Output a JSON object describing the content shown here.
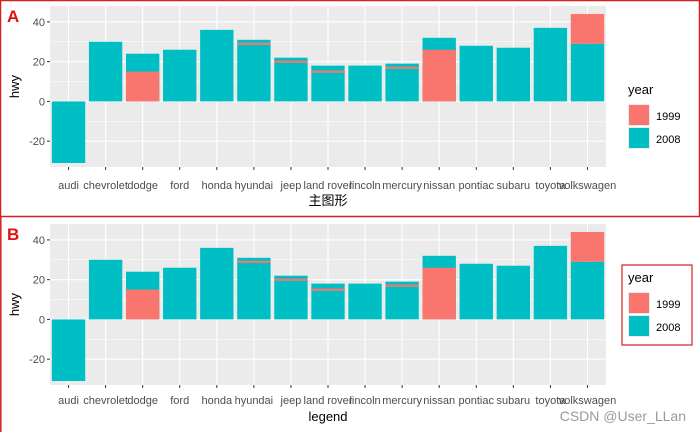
{
  "colors": {
    "y1999": "#F8766D",
    "y2008": "#00BFC4",
    "panel_bg": "#EBEBEB",
    "grid": "#FFFFFF",
    "panel_label": "#E01010",
    "border_red": "#D42020"
  },
  "watermark": "CSDN @User_LLan",
  "chart_data": [
    {
      "type": "bar",
      "panel_label": "A",
      "xlabel": "主图形",
      "ylabel": "hwy",
      "ylim": [
        -33,
        48
      ],
      "yticks": [
        -20,
        0,
        20,
        40
      ],
      "categories": [
        "audi",
        "chevrolet",
        "dodge",
        "ford",
        "honda",
        "hyundai",
        "jeep",
        "land rover",
        "lincoln",
        "mercury",
        "nissan",
        "pontiac",
        "subaru",
        "toyota",
        "volkswagen"
      ],
      "series": [
        {
          "name": "2008",
          "values": [
            -31,
            30,
            24,
            26,
            36,
            31,
            22,
            18,
            18,
            19,
            32,
            28,
            27,
            37,
            29
          ]
        },
        {
          "name": "1999",
          "values": [
            0,
            0,
            15,
            0,
            0,
            29,
            20,
            15,
            0,
            17,
            26,
            0,
            0,
            0,
            44
          ]
        }
      ],
      "legend": {
        "title": "year",
        "entries": [
          "1999",
          "2008"
        ],
        "position": "right"
      }
    },
    {
      "type": "bar",
      "panel_label": "B",
      "xlabel": "legend",
      "ylabel": "hwy",
      "ylim": [
        -33,
        48
      ],
      "yticks": [
        -20,
        0,
        20,
        40
      ],
      "categories": [
        "audi",
        "chevrolet",
        "dodge",
        "ford",
        "honda",
        "hyundai",
        "jeep",
        "land rover",
        "lincoln",
        "mercury",
        "nissan",
        "pontiac",
        "subaru",
        "toyota",
        "volkswagen"
      ],
      "series": [
        {
          "name": "2008",
          "values": [
            -31,
            30,
            24,
            26,
            36,
            31,
            22,
            18,
            18,
            19,
            32,
            28,
            27,
            37,
            29
          ]
        },
        {
          "name": "1999",
          "values": [
            0,
            0,
            15,
            0,
            0,
            29,
            20,
            15,
            0,
            17,
            26,
            0,
            0,
            0,
            44
          ]
        }
      ],
      "legend": {
        "title": "year",
        "entries": [
          "1999",
          "2008"
        ],
        "position": "right",
        "boxed": true
      }
    }
  ]
}
